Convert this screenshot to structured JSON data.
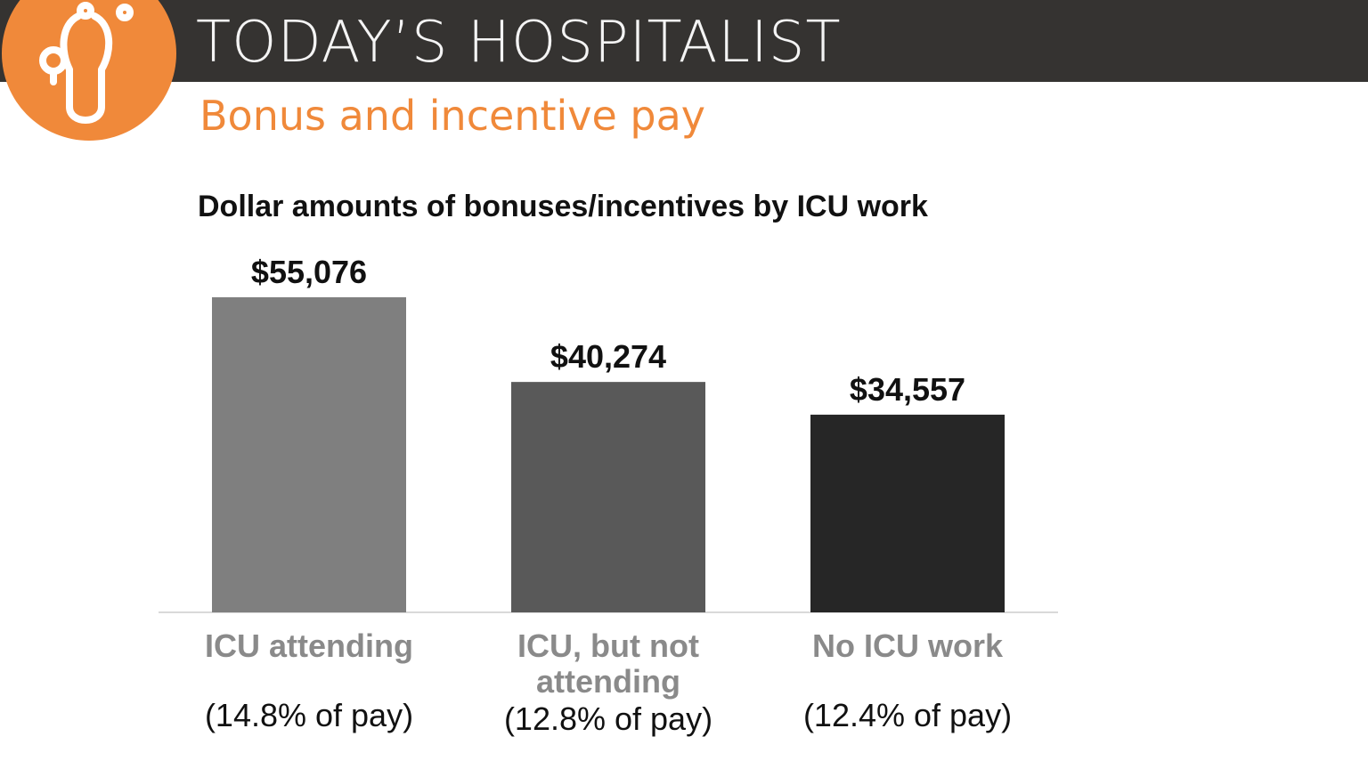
{
  "header": {
    "brand": "TODAY’S HOSPITALIST",
    "subtitle": "Bonus and incentive pay",
    "logo_icon": "stethoscope-icon"
  },
  "colors": {
    "header_bg": "#353331",
    "accent": "#f0893a"
  },
  "chart_data": {
    "type": "bar",
    "title": "Dollar amounts of bonuses/incentives by ICU work",
    "categories": [
      "ICU attending",
      "ICU, but not attending",
      "No ICU work"
    ],
    "category_lines": [
      [
        "ICU attending"
      ],
      [
        "ICU, but not",
        "attending"
      ],
      [
        "No ICU work"
      ]
    ],
    "sub_labels": [
      "(14.8% of pay)",
      "(12.8% of pay)",
      "(12.4% of pay)"
    ],
    "values": [
      55076,
      40274,
      34557
    ],
    "data_labels": [
      "$55,076",
      "$40,274",
      "$34,557"
    ],
    "bar_colors": [
      "#7f7f7f",
      "#595959",
      "#262626"
    ],
    "ylim": [
      0,
      55076
    ],
    "grid": false,
    "xlabel": "",
    "ylabel": ""
  }
}
